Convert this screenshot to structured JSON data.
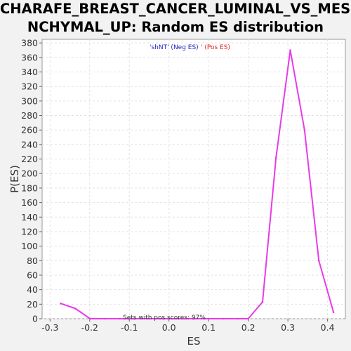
{
  "chart_data": {
    "type": "line",
    "title_lines": [
      "CHARAFE_BREAST_CANCER_LUMINAL_VS_MESE",
      "NCHYMAL_UP: Random ES distribution"
    ],
    "xlabel": "ES",
    "ylabel": "P(ES)",
    "xlim": [
      -0.32,
      0.445
    ],
    "ylim": [
      0,
      385
    ],
    "xticks": [
      -0.3,
      -0.2,
      -0.1,
      0.0,
      0.1,
      0.2,
      0.3,
      0.4
    ],
    "xtick_labels": [
      "-0.3",
      "-0.2",
      "-0.1",
      "0.0",
      "0.1",
      "0.2",
      "0.3",
      "0.4"
    ],
    "yticks": [
      0,
      20,
      40,
      60,
      80,
      100,
      120,
      140,
      160,
      180,
      200,
      220,
      240,
      260,
      280,
      300,
      320,
      340,
      360,
      380
    ],
    "grid": true,
    "series": [
      {
        "color": "#e83be8",
        "x": [
          -0.273,
          -0.236,
          -0.199,
          -0.162,
          -0.124,
          -0.087,
          -0.05,
          -0.012,
          0.025,
          0.062,
          0.1,
          0.137,
          0.174,
          0.2,
          0.236,
          0.27,
          0.306,
          0.342,
          0.378,
          0.415
        ],
        "y": [
          21,
          14,
          0,
          0,
          0,
          0,
          0,
          0,
          0,
          0,
          0,
          0,
          0,
          0,
          23,
          222,
          370,
          260,
          80,
          9
        ]
      }
    ],
    "legend": {
      "placement": "top-center",
      "entries": [
        {
          "label": "'shNT' (Neg ES)",
          "color": "#2222bb"
        },
        {
          "label": "' (Pos ES)",
          "color": "#dd2222"
        }
      ]
    },
    "annotation": "Sets with pos scores: 97%"
  }
}
